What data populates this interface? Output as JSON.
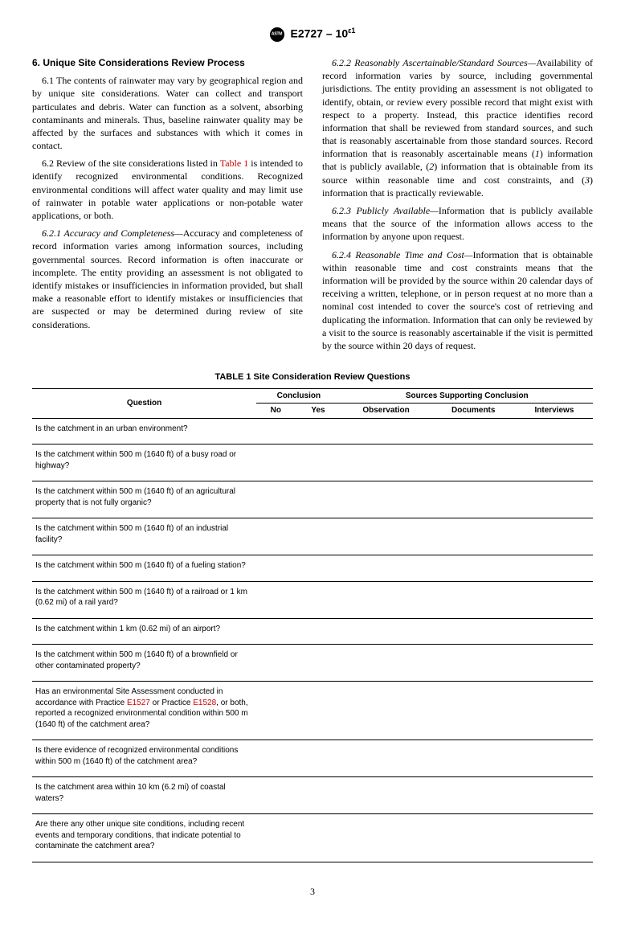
{
  "header": {
    "designation": "E2727 – 10",
    "superscript": "ε1"
  },
  "section": {
    "number_title": "6.  Unique Site Considerations Review Process",
    "p61": "6.1 The contents of rainwater may vary by geographical region and by unique site considerations. Water can collect and transport particulates and debris. Water can function as a solvent, absorbing contaminants and minerals. Thus, baseline rainwater quality may be affected by the surfaces and substances with which it comes in contact.",
    "p62a": "6.2 Review of the site considerations listed in ",
    "p62_ref": "Table 1",
    "p62b": " is intended to identify recognized environmental conditions. Recognized environmental conditions will affect water quality and may limit use of rainwater in potable water applications or non-potable water applications, or both.",
    "p621_head": "6.2.1 Accuracy and Completeness—",
    "p621_body": "Accuracy and completeness of record information varies among information sources, including governmental sources. Record information is often inaccurate or incomplete. The entity providing an assessment is not obligated to identify mistakes or insufficiencies in information provided, but shall make a reasonable effort to identify mistakes or insufficiencies that are suspected or may be determined during review of site considerations.",
    "p622_head": "6.2.2 Reasonably Ascertainable/Standard Sources—",
    "p622_body_a": "Availability of record information varies by source, including governmental jurisdictions. The entity providing an assessment is not obligated to identify, obtain, or review every possible record that might exist with respect to a property. Instead, this practice identifies record information that shall be reviewed from standard sources, and such that is reasonably ascertainable from those standard sources. Record information that is reasonably ascertainable means (",
    "p622_i1": "1",
    "p622_body_b": ") information that is publicly available, (",
    "p622_i2": "2",
    "p622_body_c": ") information that is obtainable from its source within reasonable time and cost constraints, and (",
    "p622_i3": "3",
    "p622_body_d": ") information that is practically reviewable.",
    "p623_head": "6.2.3 Publicly Available—",
    "p623_body": "Information that is publicly available means that the source of the information allows access to the information by anyone upon request.",
    "p624_head": "6.2.4 Reasonable Time and Cost—",
    "p624_body": "Information that is obtainable within reasonable time and cost constraints means that the information will be provided by the source within 20 calendar days of receiving a written, telephone, or in person request at no more than a nominal cost intended to cover the source's cost of retrieving and duplicating the information. Information that can only be reviewed by a visit to the source is reasonably ascertainable if the visit is permitted by the source within 20 days of request."
  },
  "table": {
    "title": "TABLE 1 Site Consideration Review Questions",
    "head_question": "Question",
    "head_conclusion": "Conclusion",
    "head_sources": "Sources Supporting Conclusion",
    "head_no": "No",
    "head_yes": "Yes",
    "head_obs": "Observation",
    "head_doc": "Documents",
    "head_int": "Interviews",
    "rows": [
      {
        "q": "Is the catchment in an urban environment?"
      },
      {
        "q": "Is the catchment within 500 m (1640 ft) of a busy road or highway?"
      },
      {
        "q": "Is the catchment within 500 m (1640 ft) of an agricultural property that is not fully organic?"
      },
      {
        "q": "Is the catchment within 500 m (1640 ft) of an industrial facility?"
      },
      {
        "q": "Is the catchment within 500 m (1640 ft) of a fueling station?"
      },
      {
        "q": "Is the catchment within 500 m (1640 ft) of a railroad or 1 km (0.62 mi) of a rail yard?"
      },
      {
        "q": "Is the catchment within 1 km (0.62 mi) of an airport?"
      },
      {
        "q": "Is the catchment within 500 m (1640 ft) of a brownfield or other contaminated property?"
      },
      {
        "q_a": "Has an environmental Site Assessment conducted in accordance with Practice ",
        "ref1": "E1527",
        "q_b": " or Practice ",
        "ref2": "E1528",
        "q_c": ", or both, reported a recognized environmental condition within 500 m (1640 ft) of the catchment area?"
      },
      {
        "q": "Is there evidence of recognized environmental conditions within 500 m (1640 ft) of the catchment area?"
      },
      {
        "q": "Is the catchment area within 10 km (6.2 mi) of coastal waters?"
      },
      {
        "q": "Are there any other unique site conditions, including recent events and temporary conditions, that indicate potential to contaminate the catchment area?"
      }
    ]
  },
  "page_number": "3"
}
